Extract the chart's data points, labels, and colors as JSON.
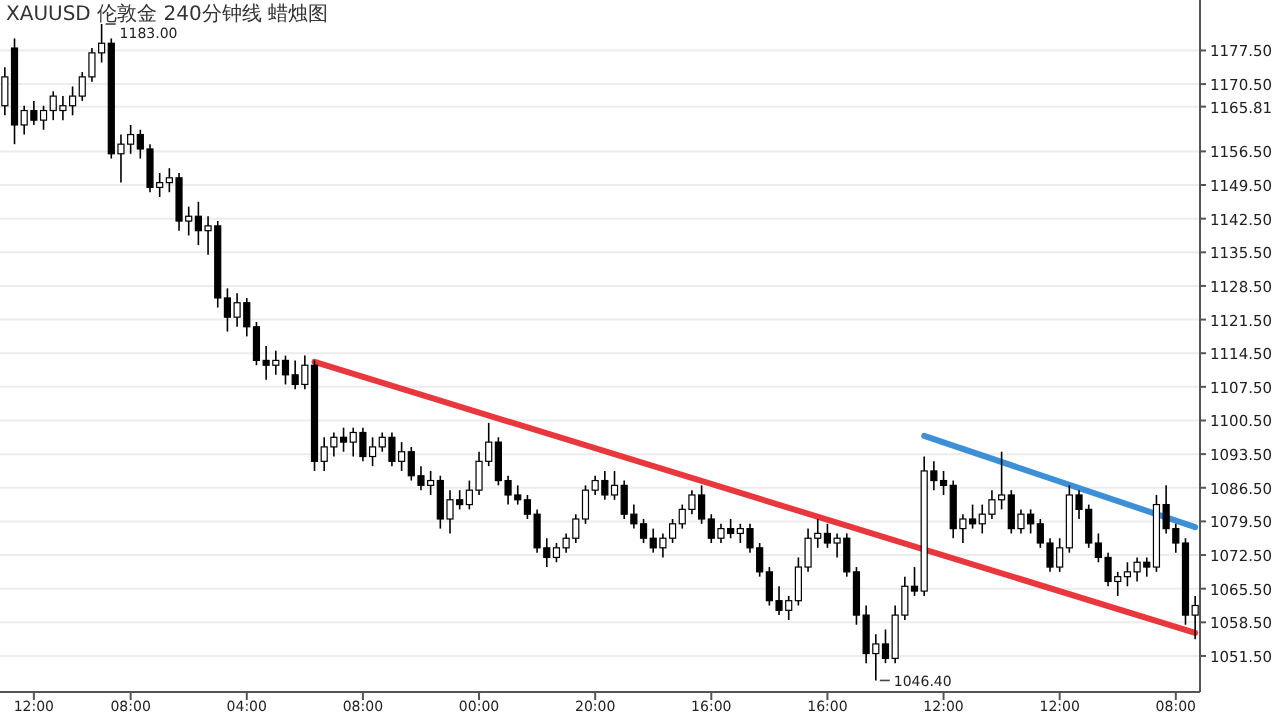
{
  "chart_data": {
    "type": "candlestick",
    "title": "XAUUSD 伦敦金 240分钟线 蜡烛图",
    "categories": [
      null,
      null,
      null,
      "12:00",
      null,
      null,
      null,
      null,
      null,
      null,
      null,
      null,
      null,
      "08:00",
      null,
      null,
      null,
      null,
      null,
      null,
      null,
      null,
      null,
      null,
      null,
      "04:00",
      null,
      null,
      null,
      null,
      null,
      null,
      null,
      null,
      null,
      null,
      null,
      "08:00",
      null,
      null,
      null,
      null,
      null,
      null,
      null,
      null,
      null,
      null,
      null,
      "00:00",
      null,
      null,
      null,
      null,
      null,
      null,
      null,
      null,
      null,
      null,
      null,
      "20:00",
      null,
      null,
      null,
      null,
      null,
      null,
      null,
      null,
      null,
      null,
      null,
      "16:00",
      null,
      null,
      null,
      null,
      null,
      null,
      null,
      null,
      null,
      null,
      null,
      "16:00",
      null,
      null,
      null,
      null,
      null,
      null,
      null,
      null,
      null,
      null,
      null,
      "12:00",
      null,
      null,
      null,
      null,
      null,
      null,
      null,
      null,
      null,
      null,
      null,
      "12:00",
      null,
      null,
      null,
      null,
      null,
      null,
      null,
      null,
      null,
      null,
      null,
      "08:00",
      null,
      null
    ],
    "ohlc": [
      [
        1166,
        1174,
        1164,
        1172
      ],
      [
        1178,
        1180,
        1158,
        1162
      ],
      [
        1162,
        1166,
        1160,
        1165
      ],
      [
        1165,
        1167,
        1162,
        1163
      ],
      [
        1163,
        1166,
        1161,
        1165
      ],
      [
        1165,
        1169,
        1163,
        1168
      ],
      [
        1165,
        1168,
        1163,
        1166
      ],
      [
        1166,
        1170,
        1164,
        1168
      ],
      [
        1168,
        1173,
        1167,
        1172
      ],
      [
        1172,
        1178,
        1171,
        1177
      ],
      [
        1177,
        1183,
        1175,
        1179
      ],
      [
        1179,
        1180,
        1155,
        1156
      ],
      [
        1156,
        1160,
        1150,
        1158
      ],
      [
        1158,
        1162,
        1156,
        1160
      ],
      [
        1160,
        1161,
        1155,
        1157
      ],
      [
        1157,
        1158,
        1148,
        1149
      ],
      [
        1149,
        1152,
        1147,
        1150
      ],
      [
        1150,
        1153,
        1148,
        1151
      ],
      [
        1151,
        1152,
        1140,
        1142
      ],
      [
        1142,
        1145,
        1139,
        1143
      ],
      [
        1143,
        1146,
        1137,
        1140
      ],
      [
        1140,
        1143,
        1135,
        1141
      ],
      [
        1141,
        1142,
        1124,
        1126
      ],
      [
        1126,
        1128,
        1119,
        1122
      ],
      [
        1122,
        1127,
        1120,
        1125
      ],
      [
        1125,
        1126,
        1118,
        1120
      ],
      [
        1120,
        1121,
        1112,
        1113
      ],
      [
        1113,
        1116,
        1109,
        1112
      ],
      [
        1112,
        1115,
        1110,
        1113
      ],
      [
        1113,
        1114,
        1108,
        1110
      ],
      [
        1110,
        1113,
        1107,
        1108
      ],
      [
        1108,
        1114,
        1107,
        1112
      ],
      [
        1112,
        1113,
        1090,
        1092
      ],
      [
        1092,
        1097,
        1090,
        1095
      ],
      [
        1095,
        1098,
        1093,
        1097
      ],
      [
        1097,
        1099,
        1094,
        1096
      ],
      [
        1096,
        1099,
        1093,
        1098
      ],
      [
        1098,
        1099,
        1092,
        1093
      ],
      [
        1093,
        1097,
        1091,
        1095
      ],
      [
        1095,
        1098,
        1094,
        1097
      ],
      [
        1097,
        1098,
        1091,
        1092
      ],
      [
        1092,
        1096,
        1090,
        1094
      ],
      [
        1094,
        1095,
        1088,
        1089
      ],
      [
        1089,
        1091,
        1086,
        1087
      ],
      [
        1087,
        1090,
        1085,
        1088
      ],
      [
        1088,
        1089,
        1078,
        1080
      ],
      [
        1080,
        1086,
        1077,
        1084
      ],
      [
        1084,
        1086,
        1082,
        1083
      ],
      [
        1083,
        1088,
        1082,
        1086
      ],
      [
        1086,
        1094,
        1085,
        1092
      ],
      [
        1092,
        1100,
        1091,
        1096
      ],
      [
        1096,
        1097,
        1087,
        1088
      ],
      [
        1088,
        1089,
        1083,
        1085
      ],
      [
        1085,
        1087,
        1083,
        1084
      ],
      [
        1084,
        1085,
        1080,
        1081
      ],
      [
        1081,
        1082,
        1073,
        1074
      ],
      [
        1074,
        1076,
        1070,
        1072
      ],
      [
        1072,
        1075,
        1071,
        1074
      ],
      [
        1074,
        1077,
        1073,
        1076
      ],
      [
        1076,
        1081,
        1075,
        1080
      ],
      [
        1080,
        1087,
        1079,
        1086
      ],
      [
        1086,
        1089,
        1085,
        1088
      ],
      [
        1088,
        1090,
        1084,
        1085
      ],
      [
        1085,
        1090,
        1084,
        1087
      ],
      [
        1087,
        1088,
        1080,
        1081
      ],
      [
        1081,
        1083,
        1078,
        1079
      ],
      [
        1079,
        1080,
        1075,
        1076
      ],
      [
        1076,
        1078,
        1073,
        1074
      ],
      [
        1074,
        1077,
        1072,
        1076
      ],
      [
        1076,
        1080,
        1075,
        1079
      ],
      [
        1079,
        1083,
        1078,
        1082
      ],
      [
        1082,
        1086,
        1081,
        1085
      ],
      [
        1085,
        1087,
        1079,
        1080
      ],
      [
        1080,
        1081,
        1075,
        1076
      ],
      [
        1076,
        1079,
        1075,
        1078
      ],
      [
        1078,
        1080,
        1076,
        1077
      ],
      [
        1077,
        1079,
        1075,
        1078
      ],
      [
        1078,
        1079,
        1073,
        1074
      ],
      [
        1074,
        1075,
        1068,
        1069
      ],
      [
        1069,
        1070,
        1062,
        1063
      ],
      [
        1063,
        1066,
        1060,
        1061
      ],
      [
        1061,
        1064,
        1059,
        1063
      ],
      [
        1063,
        1072,
        1062,
        1070
      ],
      [
        1070,
        1078,
        1069,
        1076
      ],
      [
        1076,
        1080,
        1074,
        1077
      ],
      [
        1077,
        1079,
        1074,
        1075
      ],
      [
        1075,
        1077,
        1072,
        1076
      ],
      [
        1076,
        1077,
        1068,
        1069
      ],
      [
        1069,
        1070,
        1058,
        1060
      ],
      [
        1060,
        1062,
        1050,
        1052
      ],
      [
        1052,
        1056,
        1046.4,
        1054
      ],
      [
        1054,
        1057,
        1050,
        1051
      ],
      [
        1051,
        1062,
        1050,
        1060
      ],
      [
        1060,
        1068,
        1059,
        1066
      ],
      [
        1066,
        1070,
        1064,
        1065
      ],
      [
        1065,
        1093,
        1064,
        1090
      ],
      [
        1090,
        1092,
        1086,
        1088
      ],
      [
        1088,
        1090,
        1085,
        1087
      ],
      [
        1087,
        1088,
        1076,
        1078
      ],
      [
        1078,
        1081,
        1075,
        1080
      ],
      [
        1080,
        1083,
        1078,
        1079
      ],
      [
        1079,
        1083,
        1077,
        1081
      ],
      [
        1081,
        1086,
        1080,
        1084
      ],
      [
        1084,
        1094,
        1082,
        1085
      ],
      [
        1085,
        1086,
        1077,
        1078
      ],
      [
        1078,
        1082,
        1077,
        1081
      ],
      [
        1081,
        1082,
        1077,
        1079
      ],
      [
        1079,
        1080,
        1074,
        1075
      ],
      [
        1075,
        1076,
        1069,
        1070
      ],
      [
        1070,
        1076,
        1069,
        1074
      ],
      [
        1074,
        1087,
        1073,
        1085
      ],
      [
        1085,
        1086,
        1080,
        1082
      ],
      [
        1082,
        1083,
        1074,
        1075
      ],
      [
        1075,
        1077,
        1071,
        1072
      ],
      [
        1072,
        1073,
        1066,
        1067
      ],
      [
        1067,
        1069,
        1064,
        1068
      ],
      [
        1068,
        1071,
        1066,
        1069
      ],
      [
        1069,
        1072,
        1067,
        1071
      ],
      [
        1071,
        1072,
        1068,
        1070
      ],
      [
        1070,
        1085,
        1069,
        1083
      ],
      [
        1083,
        1087,
        1077,
        1078
      ],
      [
        1078,
        1079,
        1073,
        1075
      ],
      [
        1075,
        1076,
        1058,
        1060
      ],
      [
        1060,
        1064,
        1055,
        1062
      ]
    ],
    "series": [
      {
        "type": "line",
        "color": "#e8383d",
        "values": [
          null,
          null,
          null,
          null,
          null,
          null,
          null,
          null,
          null,
          null,
          null,
          null,
          null,
          null,
          null,
          null,
          null,
          null,
          null,
          null,
          null,
          null,
          null,
          null,
          null,
          null,
          null,
          null,
          null,
          null,
          null,
          null,
          1112.7,
          null,
          null,
          null,
          null,
          null,
          null,
          null,
          null,
          null,
          null,
          null,
          null,
          null,
          null,
          null,
          null,
          null,
          null,
          null,
          null,
          null,
          null,
          null,
          null,
          null,
          null,
          null,
          null,
          null,
          null,
          null,
          null,
          null,
          null,
          null,
          null,
          null,
          null,
          null,
          null,
          null,
          null,
          null,
          null,
          null,
          null,
          null,
          null,
          null,
          null,
          null,
          null,
          null,
          null,
          null,
          null,
          null,
          null,
          null,
          null,
          null,
          null,
          null,
          null,
          null,
          null,
          null,
          null,
          null,
          null,
          null,
          null,
          null,
          null,
          null,
          null,
          null,
          null,
          null,
          null,
          null,
          null,
          null,
          null,
          null,
          null,
          null,
          null,
          null,
          null,
          1056.3
        ]
      },
      {
        "type": "line",
        "color": "#3d8fd6",
        "values": [
          null,
          null,
          null,
          null,
          null,
          null,
          null,
          null,
          null,
          null,
          null,
          null,
          null,
          null,
          null,
          null,
          null,
          null,
          null,
          null,
          null,
          null,
          null,
          null,
          null,
          null,
          null,
          null,
          null,
          null,
          null,
          null,
          null,
          null,
          null,
          null,
          null,
          null,
          null,
          null,
          null,
          null,
          null,
          null,
          null,
          null,
          null,
          null,
          null,
          null,
          null,
          null,
          null,
          null,
          null,
          null,
          null,
          null,
          null,
          null,
          null,
          null,
          null,
          null,
          null,
          null,
          null,
          null,
          null,
          null,
          null,
          null,
          null,
          null,
          null,
          null,
          null,
          null,
          null,
          null,
          null,
          null,
          null,
          null,
          null,
          null,
          null,
          null,
          null,
          null,
          null,
          null,
          null,
          null,
          null,
          1097.3,
          null,
          null,
          null,
          null,
          null,
          null,
          null,
          null,
          null,
          null,
          null,
          null,
          null,
          null,
          null,
          null,
          null,
          null,
          null,
          null,
          null,
          null,
          null,
          null,
          null,
          null,
          null,
          1078.3
        ]
      }
    ],
    "ylim": [
      1044,
      1188
    ],
    "yticks": [
      {
        "value": 1177.5,
        "label": "1177.50"
      },
      {
        "value": 1170.5,
        "label": "1170.50"
      },
      {
        "value": 1165.81,
        "label": "1165.81"
      },
      {
        "value": 1156.5,
        "label": "1156.50"
      },
      {
        "value": 1149.5,
        "label": "1149.50"
      },
      {
        "value": 1142.5,
        "label": "1142.50"
      },
      {
        "value": 1135.5,
        "label": "1135.50"
      },
      {
        "value": 1128.5,
        "label": "1128.50"
      },
      {
        "value": 1121.5,
        "label": "1121.50"
      },
      {
        "value": 1114.5,
        "label": "1114.50"
      },
      {
        "value": 1107.5,
        "label": "1107.50"
      },
      {
        "value": 1100.5,
        "label": "1100.50"
      },
      {
        "value": 1093.5,
        "label": "1093.50"
      },
      {
        "value": 1086.5,
        "label": "1086.50"
      },
      {
        "value": 1079.5,
        "label": "1079.50"
      },
      {
        "value": 1072.5,
        "label": "1072.50"
      },
      {
        "value": 1065.5,
        "label": "1065.50"
      },
      {
        "value": 1058.5,
        "label": "1058.50"
      },
      {
        "value": 1051.5,
        "label": "1051.50"
      }
    ],
    "grid": "y",
    "annotations": [
      "1183.00",
      "1046.40"
    ]
  }
}
